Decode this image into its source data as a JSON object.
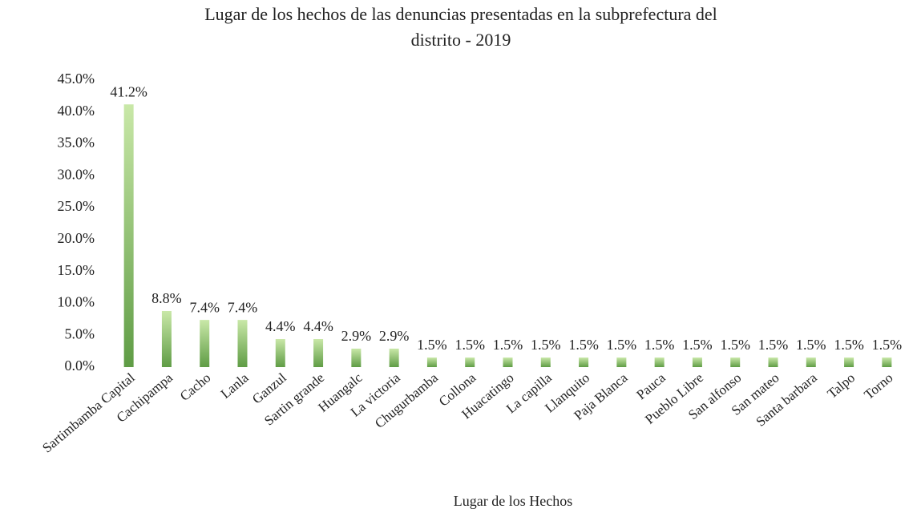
{
  "chart_data": {
    "type": "bar",
    "title": "Lugar de los hechos de las denuncias presentadas en la subprefectura del",
    "subtitle": "distrito - 2019",
    "x_label": "Lugar de los Hechos",
    "categories": [
      "Sartimbamba Capital",
      "Cachipampa",
      "Cacho",
      "Lanla",
      "Ganzul",
      "Sartin grande",
      "Huangalc",
      "La victoria",
      "Chugurbamba",
      "Collona",
      "Huacatingo",
      "La capilla",
      "Llanquito",
      "Paja Blanca",
      "Pauca",
      "Pueblo Libre",
      "San alfonso",
      "San mateo",
      "Santa barbara",
      "Talpo",
      "Torno"
    ],
    "values": [
      41.2,
      8.8,
      7.4,
      7.4,
      4.4,
      4.4,
      2.9,
      2.9,
      1.5,
      1.5,
      1.5,
      1.5,
      1.5,
      1.5,
      1.5,
      1.5,
      1.5,
      1.5,
      1.5,
      1.5,
      1.5
    ],
    "value_labels": [
      "41.2%",
      "8.8%",
      "7.4%",
      "7.4%",
      "4.4%",
      "4.4%",
      "2.9%",
      "2.9%",
      "1.5%",
      "1.5%",
      "1.5%",
      "1.5%",
      "1.5%",
      "1.5%",
      "1.5%",
      "1.5%",
      "1.5%",
      "1.5%",
      "1.5%",
      "1.5%",
      "1.5%"
    ],
    "color": "#7fbf5a",
    "ylim": [
      0,
      45
    ],
    "yticks": [
      {
        "value": 0,
        "label": "0.0%"
      },
      {
        "value": 5,
        "label": "5.0%"
      },
      {
        "value": 10,
        "label": "10.0%"
      },
      {
        "value": 15,
        "label": "15.0%"
      },
      {
        "value": 20,
        "label": "20.0%"
      },
      {
        "value": 25,
        "label": "25.0%"
      },
      {
        "value": 30,
        "label": "30.0%"
      },
      {
        "value": 35,
        "label": "35.0%"
      },
      {
        "value": 40,
        "label": "40.0%"
      },
      {
        "value": 45,
        "label": "45.0%"
      }
    ],
    "grid": false
  }
}
